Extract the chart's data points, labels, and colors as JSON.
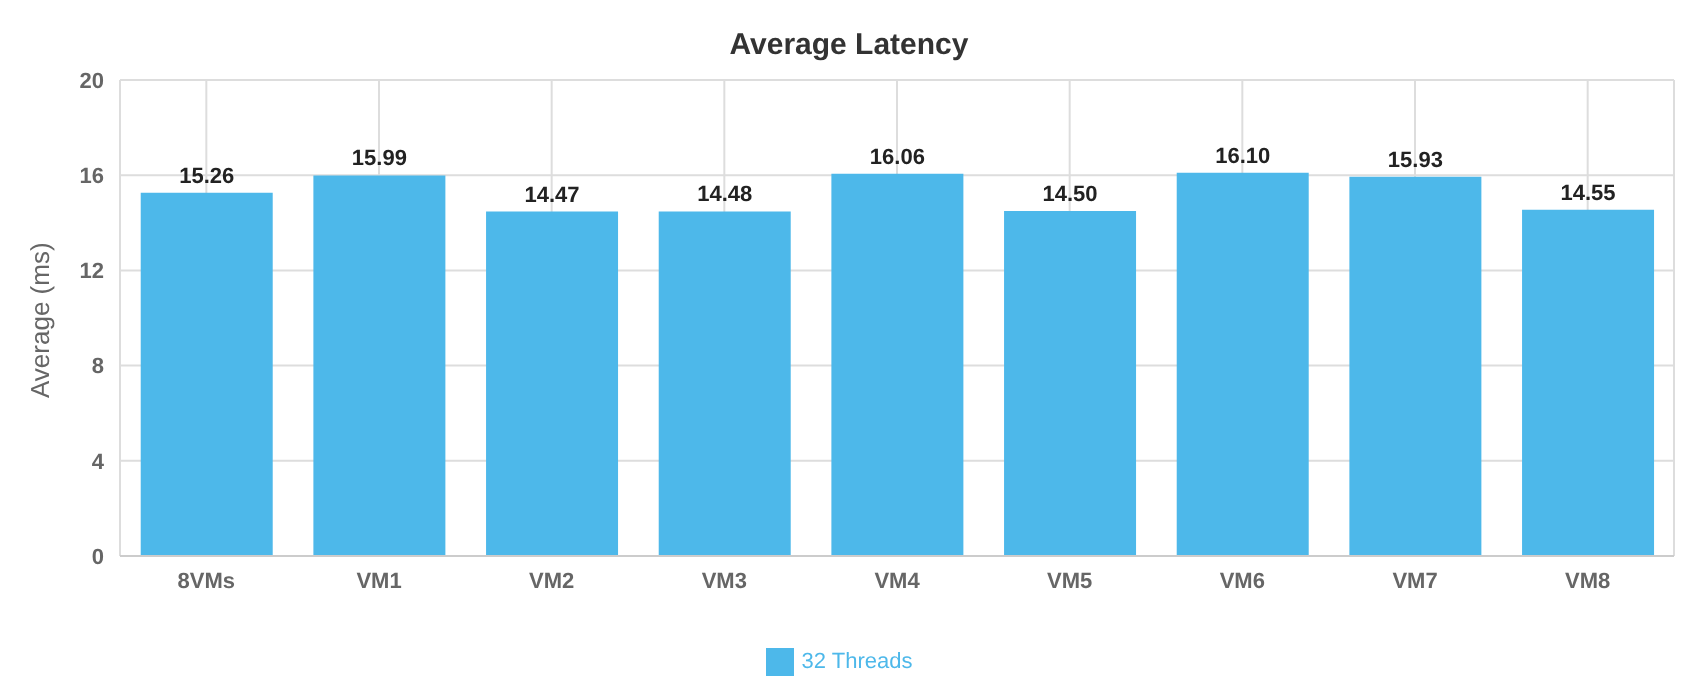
{
  "chart_data": {
    "type": "bar",
    "title": "Average Latency",
    "ylabel": "Average (ms)",
    "categories": [
      "8VMs",
      "VM1",
      "VM2",
      "VM3",
      "VM4",
      "VM5",
      "VM6",
      "VM7",
      "VM8"
    ],
    "series": [
      {
        "name": "32 Threads",
        "color": "#4db8ea",
        "values": [
          15.26,
          15.99,
          14.47,
          14.48,
          16.06,
          14.5,
          16.1,
          15.93,
          14.55
        ],
        "value_labels": [
          "15.26",
          "15.99",
          "14.47",
          "14.48",
          "16.06",
          "14.50",
          "16.10",
          "15.93",
          "14.55"
        ]
      }
    ],
    "ylim": [
      0,
      20
    ],
    "yticks": [
      0,
      4,
      8,
      12,
      16,
      20
    ],
    "grid": true,
    "legend": "bottom"
  }
}
